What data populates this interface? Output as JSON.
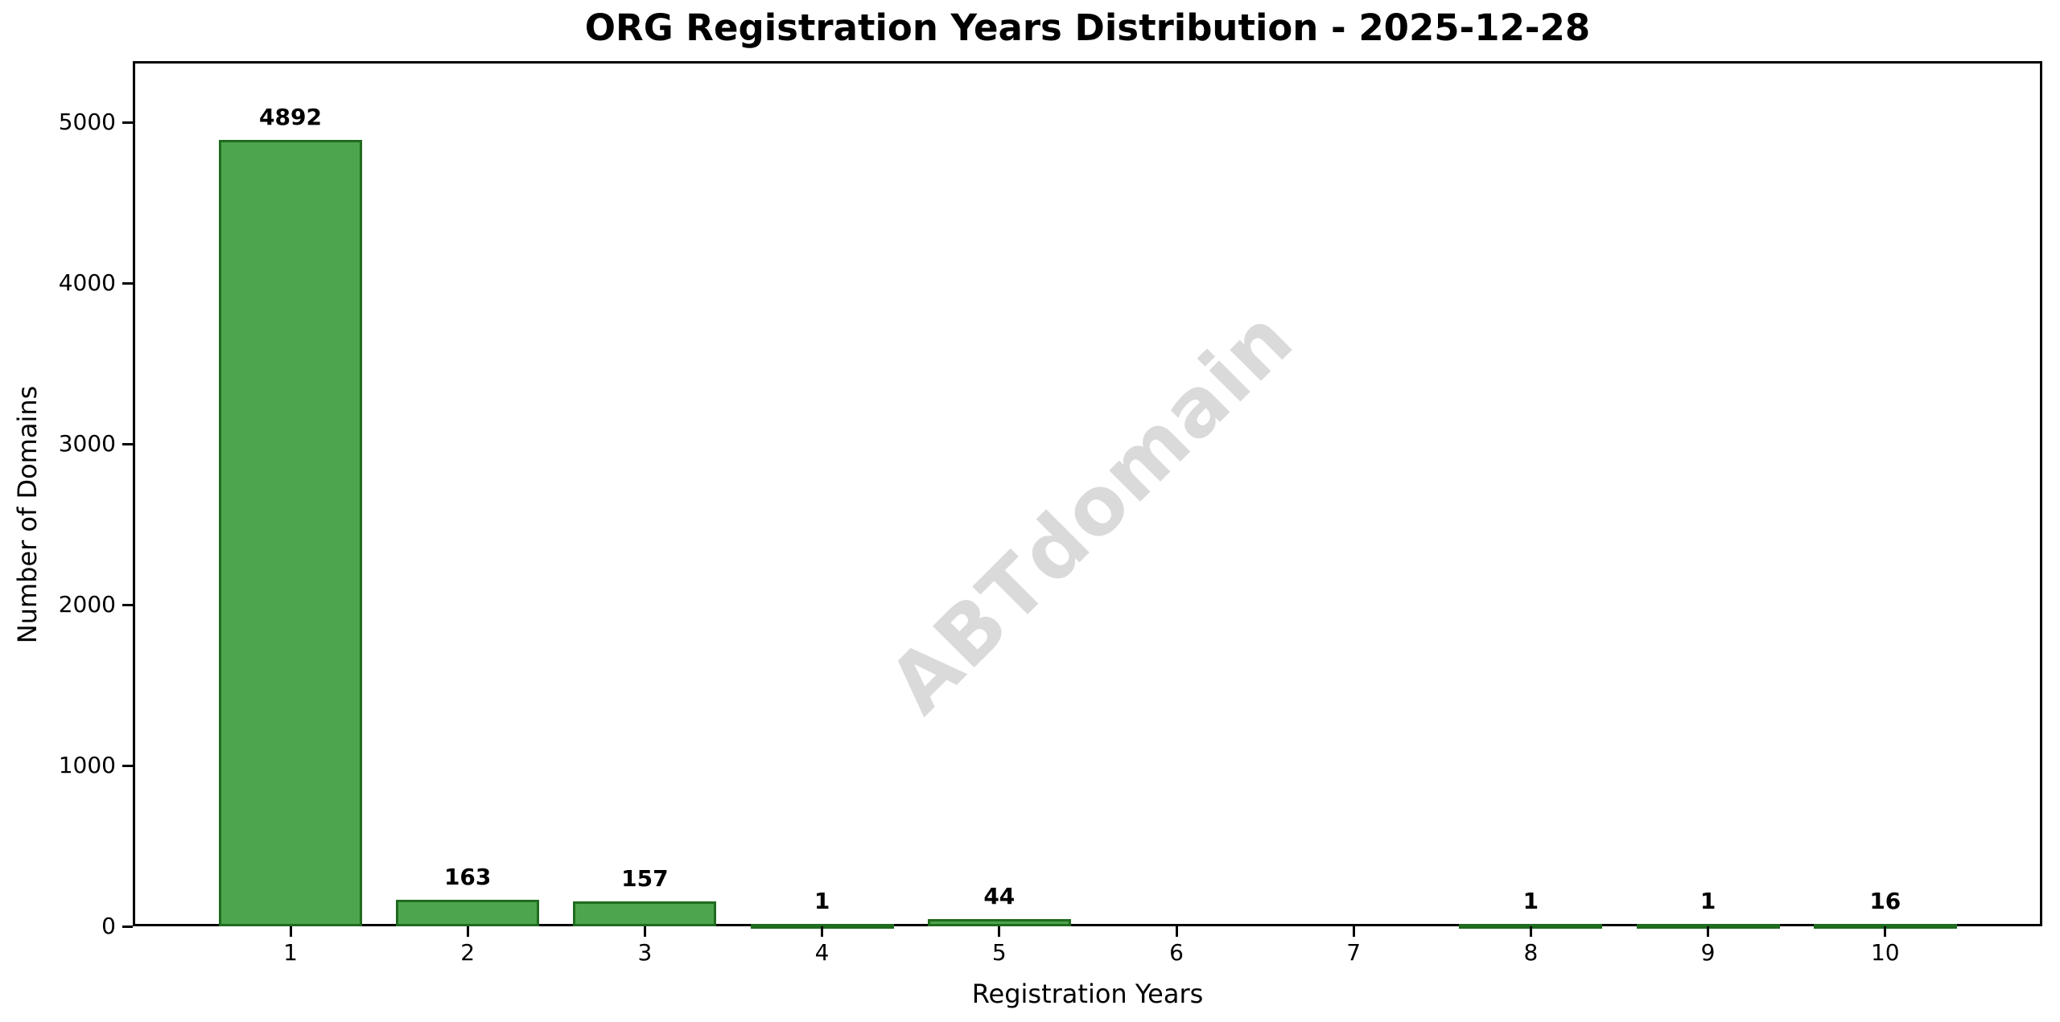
{
  "chart_data": {
    "type": "bar",
    "title": "ORG Registration Years Distribution - 2025-12-28",
    "xlabel": "Registration Years",
    "ylabel": "Number of Domains",
    "categories": [
      "1",
      "2",
      "3",
      "4",
      "5",
      "6",
      "7",
      "8",
      "9",
      "10"
    ],
    "values": [
      4892,
      163,
      157,
      1,
      44,
      0,
      0,
      1,
      1,
      16
    ],
    "bar_value_labels": [
      "4892",
      "163",
      "157",
      "1",
      "44",
      "",
      "",
      "1",
      "1",
      "16"
    ],
    "yticks": [
      0,
      1000,
      2000,
      3000,
      4000,
      5000
    ],
    "ytick_labels": [
      "0",
      "1000",
      "2000",
      "3000",
      "4000",
      "5000"
    ],
    "ylim": [
      0,
      5380
    ],
    "grid": "horizontal-light",
    "legend_position": "none",
    "watermark": "ABTdomain",
    "colors": {
      "bar_fill": "#4da54d",
      "bar_edge": "#1f6b1f",
      "gridline": "#e8e8e8",
      "spine": "#000000",
      "text": "#000000",
      "watermark": "#dadada",
      "background": "#ffffff"
    }
  }
}
